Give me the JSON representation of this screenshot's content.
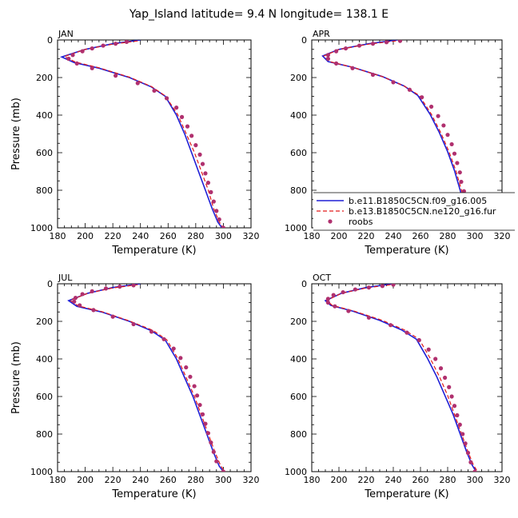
{
  "figure": {
    "title": "Yap_Island  latitude= 9.4 N longitude= 138.1 E"
  },
  "colors": {
    "model1": "#1f1fd6",
    "model2": "#e21b1b",
    "obs": "#b0306e"
  },
  "legend": {
    "panel": "APR",
    "placement": "lower-right",
    "entries": [
      {
        "label": "b.e11.B1850C5CN.f09_g16.005",
        "style": "solid-line"
      },
      {
        "label": "b.e13.B1850C5CN.ne120_g16.fur",
        "style": "dashed-line"
      },
      {
        "label": "roobs",
        "style": "dots"
      }
    ]
  },
  "chart_data": [
    {
      "type": "line",
      "label": "JAN",
      "xlabel": "Temperature (K)",
      "ylabel": "Pressure (mb)",
      "xlim": [
        180,
        320
      ],
      "ylim": [
        0,
        1000
      ],
      "y_inverted": true,
      "xticks": [
        180,
        200,
        220,
        240,
        260,
        280,
        300,
        320
      ],
      "yticks": [
        0,
        200,
        400,
        600,
        800,
        1000
      ],
      "series": [
        {
          "role": "model1",
          "points": [
            [
              240,
              0
            ],
            [
              220,
              20
            ],
            [
              200,
              50
            ],
            [
              183,
              90
            ],
            [
              192,
              120
            ],
            [
              210,
              150
            ],
            [
              232,
              200
            ],
            [
              248,
              250
            ],
            [
              258,
              300
            ],
            [
              266,
              400
            ],
            [
              272,
              500
            ],
            [
              277,
              600
            ],
            [
              282,
              700
            ],
            [
              287,
              800
            ],
            [
              292,
              900
            ],
            [
              296,
              970
            ],
            [
              299,
              1000
            ]
          ]
        },
        {
          "role": "model2",
          "points": [
            [
              238,
              5
            ],
            [
              220,
              22
            ],
            [
              200,
              50
            ],
            [
              185,
              88
            ],
            [
              193,
              118
            ],
            [
              210,
              148
            ],
            [
              232,
              198
            ],
            [
              248,
              248
            ],
            [
              258,
              298
            ],
            [
              267,
              398
            ],
            [
              273,
              498
            ],
            [
              279,
              598
            ],
            [
              284,
              698
            ],
            [
              289,
              798
            ],
            [
              293,
              898
            ],
            [
              297,
              968
            ],
            [
              300,
              1000
            ]
          ]
        },
        {
          "role": "obs",
          "points": [
            [
              230,
              10
            ],
            [
              222,
              20
            ],
            [
              213,
              30
            ],
            [
              205,
              45
            ],
            [
              198,
              60
            ],
            [
              191,
              80
            ],
            [
              188,
              100
            ],
            [
              194,
              125
            ],
            [
              205,
              150
            ],
            [
              222,
              190
            ],
            [
              238,
              230
            ],
            [
              250,
              270
            ],
            [
              259,
              310
            ],
            [
              266,
              360
            ],
            [
              270,
              410
            ],
            [
              274,
              460
            ],
            [
              277,
              510
            ],
            [
              280,
              560
            ],
            [
              283,
              610
            ],
            [
              285,
              660
            ],
            [
              287,
              710
            ],
            [
              289,
              760
            ],
            [
              291,
              810
            ],
            [
              293,
              860
            ],
            [
              295,
              910
            ],
            [
              297,
              955
            ],
            [
              300,
              1000
            ]
          ]
        }
      ]
    },
    {
      "type": "line",
      "label": "APR",
      "xlabel": "Temperature (K)",
      "ylabel": "",
      "xlim": [
        180,
        320
      ],
      "ylim": [
        0,
        1000
      ],
      "y_inverted": true,
      "xticks": [
        180,
        200,
        220,
        240,
        260,
        280,
        300,
        320
      ],
      "yticks": [
        0,
        200,
        400,
        600,
        800,
        1000
      ],
      "series": [
        {
          "role": "model1",
          "points": [
            [
              243,
              0
            ],
            [
              222,
              20
            ],
            [
              200,
              50
            ],
            [
              188,
              85
            ],
            [
              192,
              115
            ],
            [
              210,
              145
            ],
            [
              232,
              195
            ],
            [
              248,
              245
            ],
            [
              258,
              295
            ],
            [
              267,
              395
            ],
            [
              274,
              495
            ],
            [
              280,
              595
            ],
            [
              285,
              695
            ],
            [
              289,
              795
            ],
            [
              293,
              895
            ],
            [
              297,
              965
            ],
            [
              300,
              1000
            ]
          ]
        },
        {
          "role": "model2",
          "points": [
            [
              242,
              5
            ],
            [
              222,
              22
            ],
            [
              200,
              50
            ],
            [
              189,
              85
            ],
            [
              193,
              115
            ],
            [
              210,
              145
            ],
            [
              232,
              195
            ],
            [
              248,
              245
            ],
            [
              259,
              295
            ],
            [
              268,
              395
            ],
            [
              275,
              495
            ],
            [
              281,
              595
            ],
            [
              286,
              695
            ],
            [
              290,
              795
            ],
            [
              294,
              895
            ],
            [
              298,
              965
            ],
            [
              301,
              1000
            ]
          ]
        },
        {
          "role": "obs",
          "points": [
            [
              245,
              5
            ],
            [
              235,
              12
            ],
            [
              225,
              20
            ],
            [
              215,
              30
            ],
            [
              205,
              45
            ],
            [
              198,
              60
            ],
            [
              192,
              80
            ],
            [
              192,
              100
            ],
            [
              198,
              125
            ],
            [
              210,
              150
            ],
            [
              225,
              185
            ],
            [
              240,
              225
            ],
            [
              252,
              265
            ],
            [
              261,
              305
            ],
            [
              268,
              355
            ],
            [
              273,
              405
            ],
            [
              277,
              455
            ],
            [
              280,
              505
            ],
            [
              283,
              555
            ],
            [
              285,
              605
            ],
            [
              287,
              655
            ],
            [
              289,
              705
            ],
            [
              290,
              755
            ],
            [
              292,
              805
            ],
            [
              294,
              855
            ],
            [
              296,
              905
            ],
            [
              298,
              955
            ],
            [
              301,
              1000
            ]
          ]
        }
      ]
    },
    {
      "type": "line",
      "label": "JUL",
      "xlabel": "Temperature (K)",
      "ylabel": "Pressure (mb)",
      "xlim": [
        180,
        320
      ],
      "ylim": [
        0,
        1000
      ],
      "y_inverted": true,
      "xticks": [
        180,
        200,
        220,
        240,
        260,
        280,
        300,
        320
      ],
      "yticks": [
        0,
        200,
        400,
        600,
        800,
        1000
      ],
      "series": [
        {
          "role": "model1",
          "points": [
            [
              240,
              0
            ],
            [
              220,
              20
            ],
            [
              202,
              50
            ],
            [
              188,
              90
            ],
            [
              194,
              120
            ],
            [
              212,
              150
            ],
            [
              232,
              200
            ],
            [
              248,
              250
            ],
            [
              258,
              300
            ],
            [
              266,
              400
            ],
            [
              272,
              500
            ],
            [
              278,
              600
            ],
            [
              283,
              700
            ],
            [
              288,
              800
            ],
            [
              293,
              900
            ],
            [
              297,
              970
            ],
            [
              300,
              1000
            ]
          ]
        },
        {
          "role": "model2",
          "points": [
            [
              238,
              5
            ],
            [
              220,
              22
            ],
            [
              202,
              50
            ],
            [
              189,
              88
            ],
            [
              195,
              118
            ],
            [
              212,
              148
            ],
            [
              232,
              198
            ],
            [
              249,
              248
            ],
            [
              259,
              298
            ],
            [
              267,
              398
            ],
            [
              273,
              498
            ],
            [
              279,
              598
            ],
            [
              284,
              698
            ],
            [
              289,
              798
            ],
            [
              294,
              898
            ],
            [
              298,
              968
            ],
            [
              301,
              1000
            ]
          ]
        },
        {
          "role": "obs",
          "points": [
            [
              235,
              8
            ],
            [
              225,
              15
            ],
            [
              215,
              25
            ],
            [
              205,
              40
            ],
            [
              198,
              55
            ],
            [
              193,
              75
            ],
            [
              192,
              95
            ],
            [
              196,
              115
            ],
            [
              206,
              140
            ],
            [
              220,
              175
            ],
            [
              235,
              215
            ],
            [
              248,
              255
            ],
            [
              257,
              295
            ],
            [
              264,
              345
            ],
            [
              269,
              395
            ],
            [
              273,
              445
            ],
            [
              276,
              495
            ],
            [
              279,
              545
            ],
            [
              281,
              595
            ],
            [
              283,
              645
            ],
            [
              285,
              695
            ],
            [
              287,
              745
            ],
            [
              289,
              795
            ],
            [
              291,
              845
            ],
            [
              293,
              895
            ],
            [
              295,
              945
            ],
            [
              300,
              1000
            ]
          ]
        }
      ]
    },
    {
      "type": "line",
      "label": "OCT",
      "xlabel": "Temperature (K)",
      "ylabel": "",
      "xlim": [
        180,
        320
      ],
      "ylim": [
        0,
        1000
      ],
      "y_inverted": true,
      "xticks": [
        180,
        200,
        220,
        240,
        260,
        280,
        300,
        320
      ],
      "yticks": [
        0,
        200,
        400,
        600,
        800,
        1000
      ],
      "series": [
        {
          "role": "model1",
          "points": [
            [
              240,
              0
            ],
            [
              220,
              20
            ],
            [
              202,
              50
            ],
            [
              190,
              90
            ],
            [
              194,
              115
            ],
            [
              210,
              145
            ],
            [
              230,
              195
            ],
            [
              246,
              245
            ],
            [
              257,
              295
            ],
            [
              265,
              395
            ],
            [
              272,
              495
            ],
            [
              278,
              595
            ],
            [
              284,
              695
            ],
            [
              289,
              795
            ],
            [
              294,
              895
            ],
            [
              298,
              965
            ],
            [
              301,
              1000
            ]
          ]
        },
        {
          "role": "model2",
          "points": [
            [
              238,
              5
            ],
            [
              220,
              22
            ],
            [
              202,
              50
            ],
            [
              191,
              88
            ],
            [
              195,
              115
            ],
            [
              211,
              145
            ],
            [
              232,
              195
            ],
            [
              248,
              245
            ],
            [
              259,
              295
            ],
            [
              267,
              395
            ],
            [
              274,
              495
            ],
            [
              280,
              595
            ],
            [
              285,
              695
            ],
            [
              290,
              795
            ],
            [
              295,
              895
            ],
            [
              299,
              965
            ],
            [
              302,
              1000
            ]
          ]
        },
        {
          "role": "obs",
          "points": [
            [
              240,
              5
            ],
            [
              232,
              12
            ],
            [
              222,
              20
            ],
            [
              212,
              30
            ],
            [
              203,
              45
            ],
            [
              196,
              60
            ],
            [
              192,
              80
            ],
            [
              192,
              100
            ],
            [
              197,
              120
            ],
            [
              207,
              145
            ],
            [
              222,
              180
            ],
            [
              238,
              220
            ],
            [
              250,
              260
            ],
            [
              259,
              300
            ],
            [
              266,
              350
            ],
            [
              271,
              400
            ],
            [
              275,
              450
            ],
            [
              278,
              500
            ],
            [
              281,
              550
            ],
            [
              283,
              600
            ],
            [
              285,
              650
            ],
            [
              287,
              700
            ],
            [
              289,
              750
            ],
            [
              291,
              800
            ],
            [
              293,
              850
            ],
            [
              295,
              900
            ],
            [
              297,
              950
            ],
            [
              300,
              1000
            ]
          ]
        }
      ]
    }
  ]
}
